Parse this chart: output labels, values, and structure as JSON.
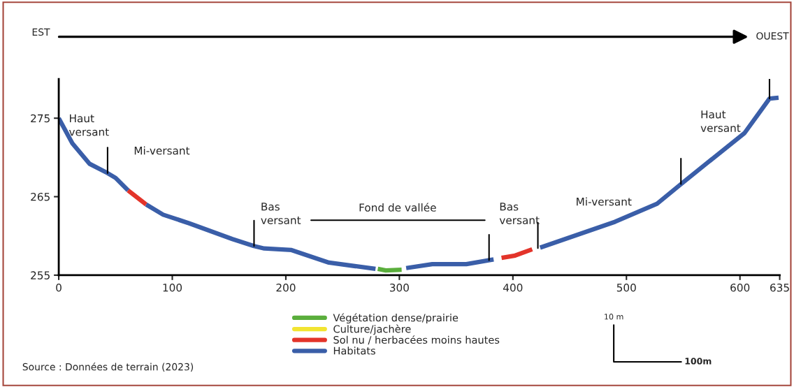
{
  "chart_data": {
    "type": "line",
    "xlim": [
      0,
      635
    ],
    "ylim": [
      255,
      280
    ],
    "xticks": [
      0,
      100,
      200,
      300,
      400,
      500,
      600,
      635
    ],
    "yticks": [
      255,
      265,
      275
    ],
    "grid": false,
    "legend": "bottom",
    "marker": "none",
    "line_style": "solid",
    "series": [
      {
        "name": "Végétation dense/prairie",
        "color": "#5aae3c",
        "x": [
          281,
          288,
          302
        ],
        "values": [
          255.8,
          255.6,
          255.7
        ]
      },
      {
        "name": "Culture/jachère",
        "color": "#f2e431"
      },
      {
        "name": "Sol nu / herbacées moins hautes",
        "color": "#e3342a",
        "x": [
          61,
          77,
          233,
          390,
          402,
          417
        ],
        "values": [
          265.8,
          264.0,
          null,
          257.2,
          257.5,
          258.3
        ]
      },
      {
        "name": "Habitats",
        "color": "#3a5ea8",
        "x": [
          0,
          12,
          27,
          43,
          50,
          61,
          69,
          77,
          92,
          115,
          153,
          172,
          181,
          205,
          238,
          279,
          292,
          306,
          329,
          359,
          383,
          403,
          424,
          490,
          527,
          548,
          572,
          604,
          620,
          626,
          634
        ],
        "values": [
          275,
          271.8,
          269.2,
          268.0,
          267.4,
          265.8,
          null,
          264.0,
          262.7,
          261.6,
          259.6,
          258.7,
          258.4,
          258.2,
          256.6,
          255.8,
          null,
          255.9,
          256.4,
          256.4,
          257.0,
          null,
          258.5,
          261.8,
          264.1,
          266.6,
          269.4,
          273.1,
          276.3,
          277.5,
          277.6
        ]
      }
    ],
    "ref_lines": [
      {
        "axis": "x",
        "value": 43
      },
      {
        "axis": "x",
        "value": 172
      },
      {
        "axis": "x",
        "value": 379
      },
      {
        "axis": "x",
        "value": 422
      },
      {
        "axis": "x",
        "value": 548
      },
      {
        "axis": "x",
        "value": 626
      }
    ],
    "annotations": [
      "Haut\nversant",
      "Mi-versant",
      "Bas\nversant",
      "Fond de vallée",
      "Bas\nversant",
      "Mi-versant",
      "Haut\nversant",
      "EST",
      "OUEST",
      "10 m",
      "100m",
      "Source : Données de terrain (2023)"
    ]
  }
}
